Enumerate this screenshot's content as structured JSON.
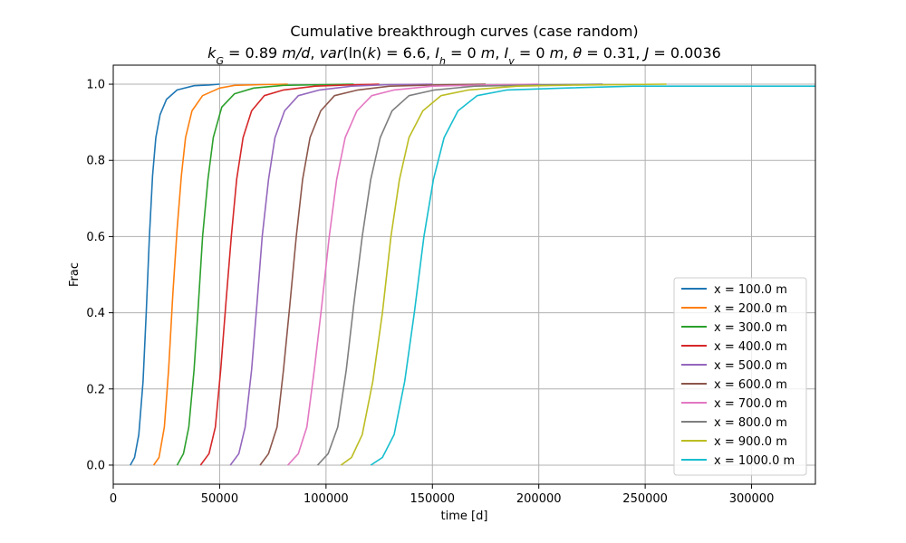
{
  "chart_data": {
    "type": "line",
    "title": "Cumulative breakthrough curves (case random)",
    "subtitle_parts": [
      {
        "t": "k",
        "i": true
      },
      {
        "t": "G",
        "i": true,
        "sub": true
      },
      {
        "t": " = 0.89 "
      },
      {
        "t": "m/d",
        "i": true
      },
      {
        "t": ", "
      },
      {
        "t": "var",
        "i": true
      },
      {
        "t": "(ln("
      },
      {
        "t": "k",
        "i": true
      },
      {
        "t": ") = 6.6, "
      },
      {
        "t": "I",
        "i": true
      },
      {
        "t": "h",
        "i": true,
        "sub": true
      },
      {
        "t": " = 0 "
      },
      {
        "t": "m",
        "i": true
      },
      {
        "t": ", "
      },
      {
        "t": "I",
        "i": true
      },
      {
        "t": "v",
        "i": true,
        "sub": true
      },
      {
        "t": " = 0 "
      },
      {
        "t": "m",
        "i": true
      },
      {
        "t": ", "
      },
      {
        "t": "θ",
        "i": true
      },
      {
        "t": " = 0.31, "
      },
      {
        "t": "J",
        "i": true
      },
      {
        "t": " = 0.0036"
      }
    ],
    "xlabel": "time [d]",
    "ylabel": "Frac",
    "xlim": [
      0,
      330000
    ],
    "ylim": [
      -0.05,
      1.05
    ],
    "xticks": [
      0,
      50000,
      100000,
      150000,
      200000,
      250000,
      300000
    ],
    "xtick_labels": [
      "0",
      "50000",
      "100000",
      "150000",
      "200000",
      "250000",
      "300000"
    ],
    "yticks": [
      0.0,
      0.2,
      0.4,
      0.6,
      0.8,
      1.0
    ],
    "ytick_labels": [
      "0.0",
      "0.2",
      "0.4",
      "0.6",
      "0.8",
      "1.0"
    ],
    "grid": true,
    "legend_position": "lower-right",
    "series": [
      {
        "name": "x = 100.0 m",
        "color": "#1f77b4",
        "points": [
          [
            8000,
            0.0
          ],
          [
            10000,
            0.02
          ],
          [
            12000,
            0.08
          ],
          [
            14000,
            0.22
          ],
          [
            15500,
            0.4
          ],
          [
            17000,
            0.6
          ],
          [
            18500,
            0.76
          ],
          [
            20000,
            0.86
          ],
          [
            22000,
            0.92
          ],
          [
            25000,
            0.96
          ],
          [
            30000,
            0.985
          ],
          [
            38000,
            0.996
          ],
          [
            45000,
            0.998
          ],
          [
            50000,
            1.0
          ]
        ]
      },
      {
        "name": "x = 200.0 m",
        "color": "#ff7f0e",
        "points": [
          [
            19000,
            0.0
          ],
          [
            21500,
            0.02
          ],
          [
            24000,
            0.1
          ],
          [
            26000,
            0.25
          ],
          [
            28000,
            0.45
          ],
          [
            30000,
            0.62
          ],
          [
            32000,
            0.76
          ],
          [
            34000,
            0.86
          ],
          [
            37000,
            0.93
          ],
          [
            42000,
            0.97
          ],
          [
            50000,
            0.99
          ],
          [
            57000,
            0.997
          ],
          [
            70000,
            0.999
          ],
          [
            82000,
            1.0
          ]
        ]
      },
      {
        "name": "x = 300.0 m",
        "color": "#2ca02c",
        "points": [
          [
            30000,
            0.0
          ],
          [
            33000,
            0.03
          ],
          [
            35500,
            0.1
          ],
          [
            38000,
            0.25
          ],
          [
            40000,
            0.42
          ],
          [
            42000,
            0.6
          ],
          [
            44500,
            0.75
          ],
          [
            47000,
            0.86
          ],
          [
            51000,
            0.94
          ],
          [
            57000,
            0.975
          ],
          [
            66000,
            0.99
          ],
          [
            80000,
            0.997
          ],
          [
            100000,
            0.999
          ],
          [
            113000,
            1.0
          ]
        ]
      },
      {
        "name": "x = 400.0 m",
        "color": "#d62728",
        "points": [
          [
            41000,
            0.0
          ],
          [
            45000,
            0.03
          ],
          [
            48000,
            0.1
          ],
          [
            50500,
            0.25
          ],
          [
            53000,
            0.43
          ],
          [
            55500,
            0.6
          ],
          [
            58000,
            0.75
          ],
          [
            61000,
            0.86
          ],
          [
            65000,
            0.93
          ],
          [
            71000,
            0.97
          ],
          [
            80000,
            0.985
          ],
          [
            95000,
            0.995
          ],
          [
            110000,
            0.998
          ],
          [
            125000,
            1.0
          ]
        ]
      },
      {
        "name": "x = 500.0 m",
        "color": "#9467bd",
        "points": [
          [
            55000,
            0.0
          ],
          [
            59000,
            0.03
          ],
          [
            62000,
            0.1
          ],
          [
            65000,
            0.25
          ],
          [
            67500,
            0.42
          ],
          [
            70000,
            0.6
          ],
          [
            73000,
            0.75
          ],
          [
            76000,
            0.86
          ],
          [
            80500,
            0.93
          ],
          [
            87000,
            0.97
          ],
          [
            97000,
            0.985
          ],
          [
            112000,
            0.995
          ],
          [
            130000,
            0.999
          ],
          [
            150000,
            1.0
          ]
        ]
      },
      {
        "name": "x = 600.0 m",
        "color": "#8c564b",
        "points": [
          [
            69000,
            0.0
          ],
          [
            73000,
            0.03
          ],
          [
            77000,
            0.1
          ],
          [
            80000,
            0.25
          ],
          [
            83000,
            0.42
          ],
          [
            86000,
            0.6
          ],
          [
            89000,
            0.75
          ],
          [
            92500,
            0.86
          ],
          [
            97500,
            0.93
          ],
          [
            104000,
            0.97
          ],
          [
            115000,
            0.985
          ],
          [
            130000,
            0.995
          ],
          [
            150000,
            0.998
          ],
          [
            175000,
            1.0
          ]
        ]
      },
      {
        "name": "x = 700.0 m",
        "color": "#e377c2",
        "points": [
          [
            82000,
            0.0
          ],
          [
            87000,
            0.03
          ],
          [
            91000,
            0.1
          ],
          [
            94500,
            0.25
          ],
          [
            98000,
            0.42
          ],
          [
            101500,
            0.6
          ],
          [
            105000,
            0.75
          ],
          [
            109000,
            0.86
          ],
          [
            114500,
            0.93
          ],
          [
            121500,
            0.97
          ],
          [
            132000,
            0.985
          ],
          [
            150000,
            0.995
          ],
          [
            175000,
            0.998
          ],
          [
            200000,
            1.0
          ]
        ]
      },
      {
        "name": "x = 800.0 m",
        "color": "#7f7f7f",
        "points": [
          [
            96000,
            0.0
          ],
          [
            101000,
            0.03
          ],
          [
            105500,
            0.1
          ],
          [
            109500,
            0.25
          ],
          [
            113000,
            0.42
          ],
          [
            117000,
            0.6
          ],
          [
            121000,
            0.75
          ],
          [
            125500,
            0.86
          ],
          [
            131000,
            0.93
          ],
          [
            139000,
            0.97
          ],
          [
            151000,
            0.985
          ],
          [
            170000,
            0.995
          ],
          [
            200000,
            0.998
          ],
          [
            230000,
            1.0
          ]
        ]
      },
      {
        "name": "x = 900.0 m",
        "color": "#bcbd22",
        "points": [
          [
            107000,
            0.0
          ],
          [
            112000,
            0.02
          ],
          [
            117000,
            0.08
          ],
          [
            122000,
            0.22
          ],
          [
            126500,
            0.4
          ],
          [
            130500,
            0.6
          ],
          [
            134500,
            0.75
          ],
          [
            139000,
            0.86
          ],
          [
            145500,
            0.93
          ],
          [
            154000,
            0.97
          ],
          [
            167000,
            0.985
          ],
          [
            190000,
            0.995
          ],
          [
            220000,
            0.998
          ],
          [
            260000,
            1.0
          ]
        ]
      },
      {
        "name": "x = 1000.0 m",
        "color": "#17becf",
        "points": [
          [
            121000,
            0.0
          ],
          [
            126500,
            0.02
          ],
          [
            132000,
            0.08
          ],
          [
            137000,
            0.22
          ],
          [
            141500,
            0.4
          ],
          [
            146000,
            0.6
          ],
          [
            150500,
            0.75
          ],
          [
            155500,
            0.86
          ],
          [
            162000,
            0.93
          ],
          [
            171000,
            0.97
          ],
          [
            185000,
            0.985
          ],
          [
            212000,
            0.99
          ],
          [
            245000,
            0.995
          ],
          [
            330000,
            0.995
          ]
        ]
      }
    ]
  }
}
